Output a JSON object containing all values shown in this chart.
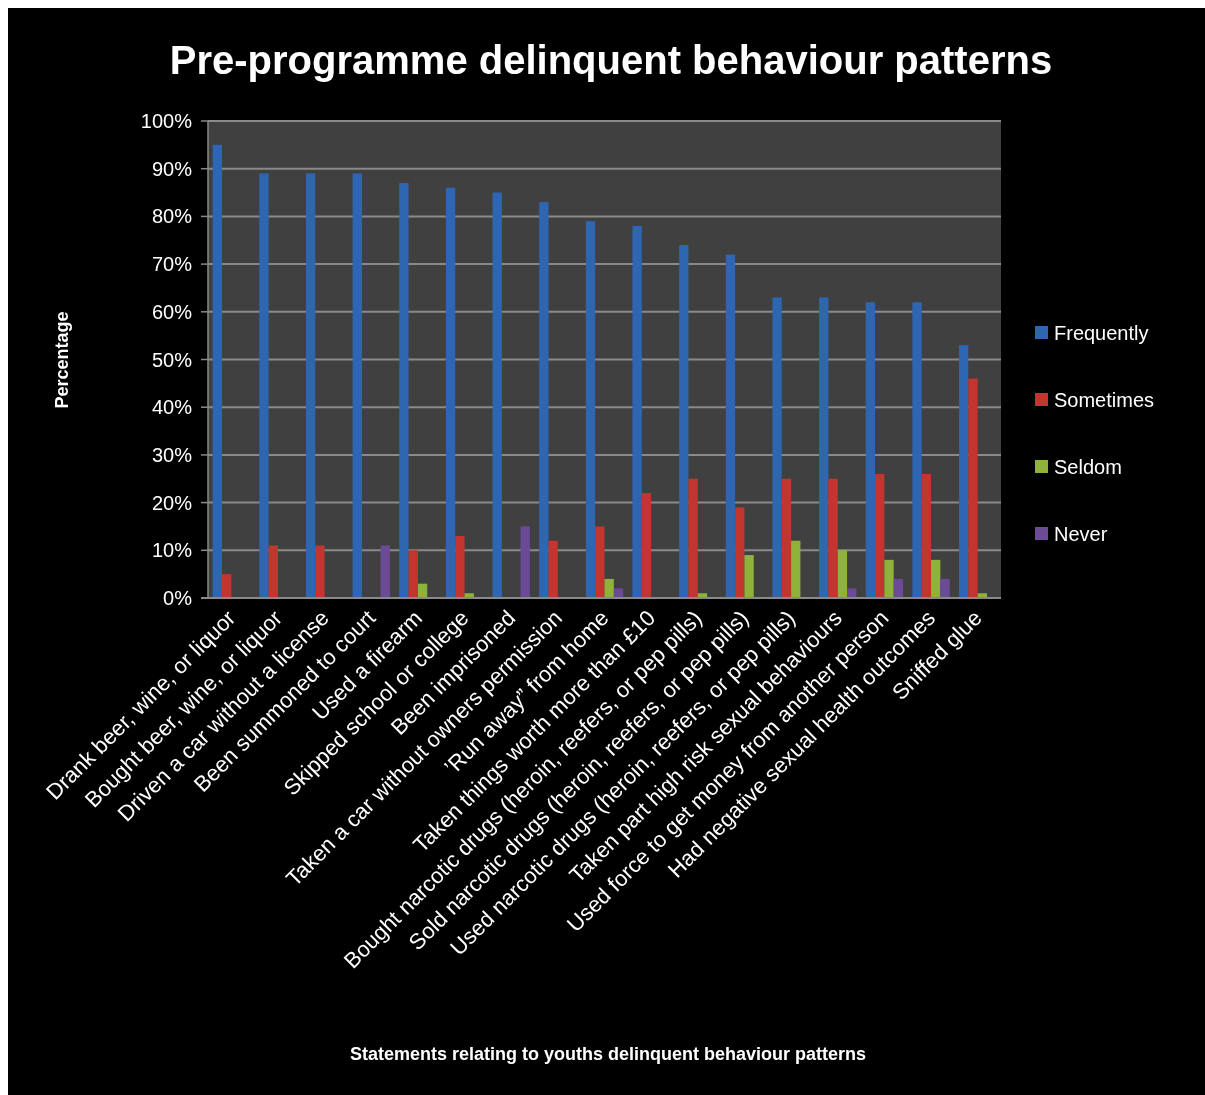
{
  "chart_data": {
    "type": "bar",
    "title": "Pre-programme delinquent behaviour patterns",
    "xlabel": "Statements relating to youths delinquent behaviour patterns",
    "ylabel": "Percentage",
    "categories": [
      "Drank beer, wine, or liquor",
      "Bought beer, wine, or liquor",
      "Driven a car without a license",
      "Been summoned to court",
      "Used a firearm",
      "Skipped school or college",
      "Been imprisoned",
      "Taken a car without owners permission",
      "’Run away” from home",
      "Taken things worth more than £10",
      "Bought narcotic drugs (heroin, reefers, or pep pills)",
      "Sold narcotic drugs (heroin, reefers, or pep pills)",
      "Used narcotic drugs (heroin, reefers, or pep pills)",
      "Taken part high risk sexual behaviours",
      "Used force to get money from another person",
      "Had negative sexual health outcomes",
      "Sniffed glue"
    ],
    "series": [
      {
        "name": "Frequently",
        "color": "#2e66b2",
        "values": [
          95,
          89,
          89,
          89,
          87,
          86,
          85,
          83,
          79,
          78,
          74,
          72,
          63,
          63,
          62,
          62,
          53
        ]
      },
      {
        "name": "Sometimes",
        "color": "#c2362f",
        "values": [
          5,
          11,
          11,
          null,
          10,
          13,
          null,
          12,
          15,
          22,
          25,
          19,
          25,
          25,
          26,
          26,
          46
        ]
      },
      {
        "name": "Seldom",
        "color": "#8fb23a",
        "values": [
          null,
          null,
          null,
          null,
          3,
          1,
          null,
          null,
          4,
          null,
          1,
          9,
          12,
          10,
          8,
          8,
          1
        ]
      },
      {
        "name": "Never",
        "color": "#6b4a96",
        "values": [
          null,
          null,
          null,
          11,
          null,
          null,
          15,
          null,
          2,
          null,
          null,
          null,
          null,
          2,
          4,
          4,
          null
        ]
      }
    ],
    "ylim": [
      0,
      100
    ],
    "yticks": [
      {
        "value": 0,
        "label": "0%"
      },
      {
        "value": 10,
        "label": "10%"
      },
      {
        "value": 20,
        "label": "20%"
      },
      {
        "value": 30,
        "label": "30%"
      },
      {
        "value": 40,
        "label": "40%"
      },
      {
        "value": 50,
        "label": "50%"
      },
      {
        "value": 60,
        "label": "60%"
      },
      {
        "value": 70,
        "label": "70%"
      },
      {
        "value": 80,
        "label": "80%"
      },
      {
        "value": 90,
        "label": "90%"
      },
      {
        "value": 100,
        "label": "100%"
      }
    ],
    "grid": "y",
    "legend": "right"
  }
}
